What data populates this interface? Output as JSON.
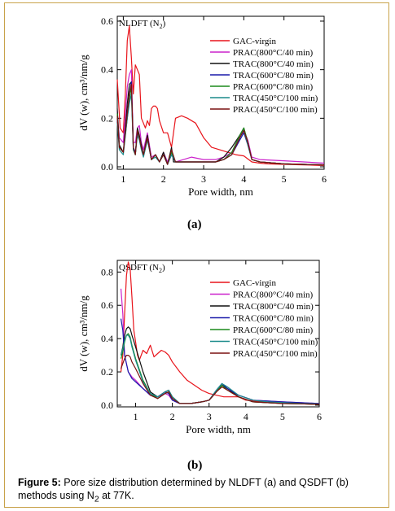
{
  "caption": {
    "label": "Figure 5:",
    "text_before": " Pore size distribution determined by NLDFT (a) and QSDFT (b) methods using N",
    "subscript": "2",
    "text_after": " at 77K."
  },
  "chart_data": [
    {
      "type": "line",
      "panel_label": "(a)",
      "method": "NLDFT",
      "method_sub": "2",
      "xlabel": "Pore width, nm",
      "ylabel": "dV (w), cm³/nm/g",
      "xlim": [
        0.85,
        6
      ],
      "ylim": [
        -0.01,
        0.62
      ],
      "xticks": [
        1,
        2,
        3,
        4,
        5,
        6
      ],
      "yticks": [
        0.0,
        0.2,
        0.4,
        0.6
      ],
      "ytick_labels": [
        "0.0",
        "0.2",
        "0.4",
        "0.6"
      ],
      "legend_position": "top-right",
      "series": [
        {
          "name": "GAC-virgin",
          "color": "#e8141b",
          "x": [
            0.85,
            0.92,
            1.0,
            1.05,
            1.1,
            1.15,
            1.2,
            1.25,
            1.3,
            1.35,
            1.4,
            1.45,
            1.5,
            1.55,
            1.6,
            1.65,
            1.7,
            1.75,
            1.8,
            1.85,
            1.9,
            2.0,
            2.1,
            2.2,
            2.3,
            2.45,
            2.6,
            2.8,
            3.0,
            3.2,
            3.4,
            3.6,
            3.8,
            4.0,
            4.2,
            4.4,
            4.6,
            5.0,
            5.5,
            6.0
          ],
          "y": [
            0.36,
            0.16,
            0.14,
            0.3,
            0.52,
            0.58,
            0.45,
            0.3,
            0.42,
            0.4,
            0.38,
            0.2,
            0.18,
            0.16,
            0.19,
            0.17,
            0.24,
            0.25,
            0.25,
            0.24,
            0.19,
            0.14,
            0.14,
            0.08,
            0.2,
            0.21,
            0.2,
            0.18,
            0.12,
            0.08,
            0.07,
            0.06,
            0.05,
            0.045,
            0.02,
            0.015,
            0.012,
            0.01,
            0.008,
            0.005
          ]
        },
        {
          "name": "PRAC(800°C/40 min)",
          "color": "#cc22cc",
          "x": [
            0.85,
            0.9,
            1.0,
            1.1,
            1.15,
            1.2,
            1.25,
            1.3,
            1.35,
            1.4,
            1.45,
            1.5,
            1.6,
            1.7,
            1.8,
            1.9,
            2.0,
            2.1,
            2.2,
            2.3,
            2.5,
            2.7,
            3.0,
            3.3,
            3.5,
            3.7,
            3.9,
            4.0,
            4.1,
            4.2,
            4.4,
            5.0,
            5.5,
            6.0
          ],
          "y": [
            0.23,
            0.12,
            0.1,
            0.33,
            0.38,
            0.4,
            0.1,
            0.1,
            0.16,
            0.17,
            0.1,
            0.07,
            0.14,
            0.04,
            0.05,
            0.02,
            0.06,
            0.02,
            0.06,
            0.02,
            0.03,
            0.04,
            0.03,
            0.03,
            0.04,
            0.06,
            0.13,
            0.15,
            0.11,
            0.04,
            0.03,
            0.025,
            0.02,
            0.015
          ]
        },
        {
          "name": "TRAC(800°C/40 min)",
          "color": "#111111",
          "x": [
            0.85,
            0.9,
            1.0,
            1.1,
            1.15,
            1.2,
            1.25,
            1.3,
            1.35,
            1.4,
            1.45,
            1.5,
            1.6,
            1.7,
            1.8,
            1.9,
            2.0,
            2.1,
            2.2,
            2.25,
            2.3,
            2.5,
            2.7,
            3.0,
            3.3,
            3.5,
            3.7,
            3.9,
            4.0,
            4.1,
            4.2,
            4.4,
            5.0,
            5.5,
            6.0
          ],
          "y": [
            0.24,
            0.09,
            0.06,
            0.26,
            0.34,
            0.35,
            0.08,
            0.05,
            0.16,
            0.13,
            0.09,
            0.05,
            0.13,
            0.03,
            0.05,
            0.02,
            0.06,
            0.01,
            0.08,
            0.02,
            0.02,
            0.02,
            0.02,
            0.02,
            0.02,
            0.04,
            0.08,
            0.13,
            0.16,
            0.1,
            0.03,
            0.02,
            0.012,
            0.01,
            0.008
          ]
        },
        {
          "name": "TRAC(600°C/80 min)",
          "color": "#1a1aaa",
          "x": [
            0.85,
            0.9,
            1.0,
            1.1,
            1.15,
            1.2,
            1.25,
            1.3,
            1.35,
            1.4,
            1.45,
            1.5,
            1.6,
            1.7,
            1.8,
            1.9,
            2.0,
            2.1,
            2.2,
            2.3,
            2.5,
            2.7,
            3.0,
            3.3,
            3.5,
            3.7,
            3.9,
            4.0,
            4.1,
            4.2,
            4.4,
            5.0,
            5.5,
            6.0
          ],
          "y": [
            0.2,
            0.08,
            0.06,
            0.22,
            0.3,
            0.35,
            0.08,
            0.06,
            0.14,
            0.12,
            0.08,
            0.05,
            0.12,
            0.03,
            0.05,
            0.02,
            0.05,
            0.01,
            0.05,
            0.02,
            0.02,
            0.02,
            0.02,
            0.02,
            0.03,
            0.05,
            0.11,
            0.14,
            0.09,
            0.03,
            0.02,
            0.012,
            0.01,
            0.008
          ]
        },
        {
          "name": "PRAC(600°C/80 min)",
          "color": "#1a8a1a",
          "x": [
            0.85,
            0.9,
            1.0,
            1.1,
            1.15,
            1.2,
            1.25,
            1.3,
            1.35,
            1.4,
            1.45,
            1.5,
            1.6,
            1.7,
            1.8,
            1.9,
            2.0,
            2.1,
            2.2,
            2.3,
            2.5,
            2.7,
            3.0,
            3.3,
            3.5,
            3.7,
            3.9,
            4.0,
            4.1,
            4.2,
            4.4,
            5.0,
            5.5,
            6.0
          ],
          "y": [
            0.22,
            0.08,
            0.06,
            0.2,
            0.28,
            0.33,
            0.07,
            0.05,
            0.15,
            0.12,
            0.08,
            0.05,
            0.12,
            0.03,
            0.05,
            0.02,
            0.05,
            0.01,
            0.06,
            0.02,
            0.02,
            0.02,
            0.02,
            0.02,
            0.03,
            0.06,
            0.13,
            0.16,
            0.1,
            0.03,
            0.02,
            0.012,
            0.01,
            0.008
          ]
        },
        {
          "name": "TRAC(450°C/100 min)",
          "color": "#1a8a8a",
          "x": [
            0.85,
            0.9,
            1.0,
            1.1,
            1.15,
            1.2,
            1.25,
            1.3,
            1.35,
            1.4,
            1.45,
            1.5,
            1.6,
            1.7,
            1.8,
            1.9,
            2.0,
            2.1,
            2.2,
            2.3,
            2.5,
            2.7,
            3.0,
            3.3,
            3.5,
            3.7,
            3.9,
            4.0,
            4.1,
            4.2,
            4.4,
            5.0,
            5.5,
            6.0
          ],
          "y": [
            0.18,
            0.07,
            0.05,
            0.2,
            0.26,
            0.3,
            0.07,
            0.05,
            0.13,
            0.11,
            0.07,
            0.04,
            0.11,
            0.03,
            0.04,
            0.02,
            0.05,
            0.01,
            0.05,
            0.02,
            0.02,
            0.02,
            0.02,
            0.02,
            0.03,
            0.05,
            0.12,
            0.15,
            0.09,
            0.03,
            0.02,
            0.012,
            0.01,
            0.008
          ]
        },
        {
          "name": "PRAC(450°C/100 min)",
          "color": "#7a1010",
          "x": [
            0.85,
            0.9,
            1.0,
            1.1,
            1.15,
            1.2,
            1.25,
            1.3,
            1.35,
            1.4,
            1.45,
            1.5,
            1.6,
            1.7,
            1.8,
            1.9,
            2.0,
            2.1,
            2.2,
            2.3,
            2.5,
            2.7,
            3.0,
            3.3,
            3.5,
            3.7,
            3.9,
            4.0,
            4.1,
            4.2,
            4.4,
            5.0,
            5.5,
            6.0
          ],
          "y": [
            0.21,
            0.08,
            0.06,
            0.22,
            0.3,
            0.34,
            0.08,
            0.05,
            0.15,
            0.12,
            0.08,
            0.05,
            0.12,
            0.03,
            0.05,
            0.02,
            0.05,
            0.01,
            0.07,
            0.02,
            0.02,
            0.02,
            0.02,
            0.02,
            0.03,
            0.05,
            0.12,
            0.15,
            0.1,
            0.03,
            0.02,
            0.012,
            0.01,
            0.008
          ]
        }
      ]
    },
    {
      "type": "line",
      "panel_label": "(b)",
      "method": "QSDFT",
      "method_sub": "2",
      "xlabel": "Pore width, nm",
      "ylabel": "dV (w), cm³/nm/g",
      "xlim": [
        0.5,
        6
      ],
      "ylim": [
        -0.01,
        0.87
      ],
      "xticks": [
        1,
        2,
        3,
        4,
        5,
        6
      ],
      "yticks": [
        0.0,
        0.2,
        0.4,
        0.6,
        0.8
      ],
      "ytick_labels": [
        "0.0",
        "0.2",
        "0.4",
        "0.6",
        "0.8"
      ],
      "legend_position": "top-right",
      "series": [
        {
          "name": "GAC-virgin",
          "color": "#e8141b",
          "x": [
            0.6,
            0.65,
            0.7,
            0.75,
            0.8,
            0.85,
            0.9,
            0.95,
            1.0,
            1.05,
            1.1,
            1.2,
            1.3,
            1.4,
            1.5,
            1.6,
            1.7,
            1.8,
            1.9,
            2.0,
            2.2,
            2.4,
            2.6,
            2.8,
            3.0,
            3.2,
            3.4,
            3.6,
            3.8,
            4.0,
            4.5,
            5.0,
            5.5,
            6.0
          ],
          "y": [
            0.2,
            0.3,
            0.55,
            0.78,
            0.86,
            0.82,
            0.65,
            0.45,
            0.38,
            0.3,
            0.27,
            0.33,
            0.31,
            0.36,
            0.29,
            0.31,
            0.33,
            0.32,
            0.3,
            0.26,
            0.2,
            0.15,
            0.12,
            0.09,
            0.07,
            0.06,
            0.05,
            0.05,
            0.05,
            0.03,
            0.02,
            0.015,
            0.012,
            0.01
          ]
        },
        {
          "name": "PRAC(800°C/40 min)",
          "color": "#cc22cc",
          "x": [
            0.6,
            0.65,
            0.7,
            0.8,
            0.9,
            1.0,
            1.2,
            1.4,
            1.6,
            1.8,
            1.9,
            2.0,
            2.2,
            2.5,
            2.8,
            3.0,
            3.2,
            3.35,
            3.5,
            3.8,
            4.2,
            4.6,
            5.0,
            5.5,
            6.0
          ],
          "y": [
            0.7,
            0.55,
            0.3,
            0.2,
            0.17,
            0.15,
            0.1,
            0.06,
            0.05,
            0.07,
            0.06,
            0.03,
            0.01,
            0.01,
            0.02,
            0.03,
            0.08,
            0.12,
            0.1,
            0.06,
            0.03,
            0.025,
            0.02,
            0.015,
            0.01
          ]
        },
        {
          "name": "TRAC(800°C/40 min)",
          "color": "#111111",
          "x": [
            0.6,
            0.65,
            0.7,
            0.75,
            0.8,
            0.85,
            0.9,
            1.0,
            1.2,
            1.4,
            1.6,
            1.8,
            1.9,
            2.0,
            2.2,
            2.5,
            2.8,
            3.0,
            3.2,
            3.35,
            3.5,
            3.8,
            4.2,
            4.6,
            5.0,
            5.5,
            6.0
          ],
          "y": [
            0.3,
            0.35,
            0.42,
            0.46,
            0.47,
            0.46,
            0.42,
            0.35,
            0.2,
            0.08,
            0.05,
            0.08,
            0.09,
            0.05,
            0.01,
            0.01,
            0.02,
            0.03,
            0.08,
            0.12,
            0.1,
            0.05,
            0.02,
            0.015,
            0.01,
            0.008,
            0.005
          ]
        },
        {
          "name": "TRAC(600°C/80 min)",
          "color": "#1a1aaa",
          "x": [
            0.6,
            0.65,
            0.7,
            0.8,
            0.9,
            1.0,
            1.2,
            1.4,
            1.6,
            1.8,
            1.9,
            2.0,
            2.2,
            2.5,
            2.8,
            3.0,
            3.2,
            3.35,
            3.5,
            3.8,
            4.2,
            4.6,
            5.0,
            5.5,
            6.0
          ],
          "y": [
            0.52,
            0.45,
            0.3,
            0.2,
            0.16,
            0.14,
            0.1,
            0.06,
            0.05,
            0.08,
            0.07,
            0.03,
            0.01,
            0.01,
            0.02,
            0.03,
            0.09,
            0.13,
            0.1,
            0.06,
            0.03,
            0.025,
            0.02,
            0.015,
            0.01
          ]
        },
        {
          "name": "PRAC(600°C/80 min)",
          "color": "#1a8a1a",
          "x": [
            0.6,
            0.65,
            0.7,
            0.75,
            0.8,
            0.85,
            0.9,
            1.0,
            1.2,
            1.4,
            1.6,
            1.8,
            1.9,
            2.0,
            2.2,
            2.5,
            2.8,
            3.0,
            3.2,
            3.35,
            3.5,
            3.8,
            4.2,
            4.6,
            5.0,
            5.5,
            6.0
          ],
          "y": [
            0.28,
            0.32,
            0.38,
            0.42,
            0.43,
            0.41,
            0.36,
            0.28,
            0.15,
            0.07,
            0.04,
            0.07,
            0.08,
            0.04,
            0.01,
            0.01,
            0.02,
            0.03,
            0.08,
            0.12,
            0.09,
            0.05,
            0.02,
            0.015,
            0.01,
            0.008,
            0.005
          ]
        },
        {
          "name": "TRAC(450°C/100 min)",
          "color": "#1a8a8a",
          "x": [
            0.6,
            0.65,
            0.7,
            0.75,
            0.8,
            0.85,
            0.9,
            1.0,
            1.2,
            1.4,
            1.6,
            1.8,
            1.9,
            2.0,
            2.2,
            2.5,
            2.8,
            3.0,
            3.2,
            3.35,
            3.5,
            3.8,
            4.2,
            4.6,
            5.0,
            5.5,
            6.0
          ],
          "y": [
            0.3,
            0.34,
            0.39,
            0.42,
            0.42,
            0.4,
            0.35,
            0.27,
            0.14,
            0.07,
            0.05,
            0.08,
            0.09,
            0.05,
            0.01,
            0.01,
            0.02,
            0.03,
            0.09,
            0.13,
            0.11,
            0.06,
            0.03,
            0.02,
            0.015,
            0.01,
            0.008
          ]
        },
        {
          "name": "PRAC(450°C/100 min)",
          "color": "#7a1010",
          "x": [
            0.6,
            0.65,
            0.7,
            0.75,
            0.8,
            0.85,
            0.9,
            1.0,
            1.2,
            1.4,
            1.6,
            1.8,
            1.9,
            2.0,
            2.2,
            2.5,
            2.8,
            3.0,
            3.2,
            3.35,
            3.5,
            3.8,
            4.2,
            4.6,
            5.0,
            5.5,
            6.0
          ],
          "y": [
            0.22,
            0.25,
            0.28,
            0.3,
            0.3,
            0.29,
            0.26,
            0.22,
            0.13,
            0.06,
            0.04,
            0.07,
            0.08,
            0.04,
            0.01,
            0.01,
            0.02,
            0.03,
            0.08,
            0.11,
            0.09,
            0.05,
            0.02,
            0.015,
            0.01,
            0.008,
            0.005
          ]
        }
      ]
    }
  ]
}
